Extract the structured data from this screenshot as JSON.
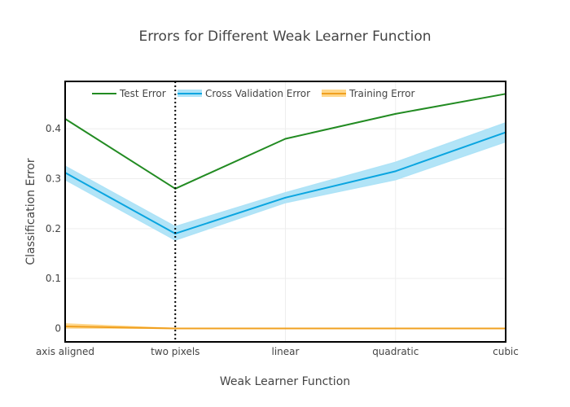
{
  "chart_data": {
    "type": "line",
    "title": "Errors for Different Weak Learner Function",
    "xlabel": "Weak Learner Function",
    "ylabel": "Classification Error",
    "categories": [
      "axis aligned",
      "two pixels",
      "linear",
      "quadratic",
      "cubic"
    ],
    "ylim": [
      -0.027,
      0.495
    ],
    "yticks": [
      0,
      0.1,
      0.2,
      0.3,
      0.4
    ],
    "ytick_labels": [
      "0",
      "0.1",
      "0.2",
      "0.3",
      "0.4"
    ],
    "grid": true,
    "legend_position": "top-left",
    "series": [
      {
        "name": "Test Error",
        "color": "#228b22",
        "values": [
          0.42,
          0.28,
          0.38,
          0.43,
          0.47
        ]
      },
      {
        "name": "Cross Validation Error",
        "color": "#0aa5e0",
        "band_color": "#aee3f7",
        "values": [
          0.312,
          0.19,
          0.262,
          0.315,
          0.393
        ],
        "upper": [
          0.325,
          0.204,
          0.272,
          0.333,
          0.412
        ],
        "lower": [
          0.298,
          0.177,
          0.252,
          0.298,
          0.374
        ]
      },
      {
        "name": "Training Error",
        "color": "#f0a020",
        "band_color": "#ffd78a",
        "values": [
          0.004,
          0,
          0,
          0,
          0
        ],
        "upper": [
          0.009,
          0,
          0,
          0,
          0
        ],
        "lower": [
          0.001,
          0,
          0,
          0,
          0
        ]
      }
    ],
    "vertical_marker": {
      "category": "two pixels",
      "style": "dotted",
      "color": "#000000"
    }
  }
}
